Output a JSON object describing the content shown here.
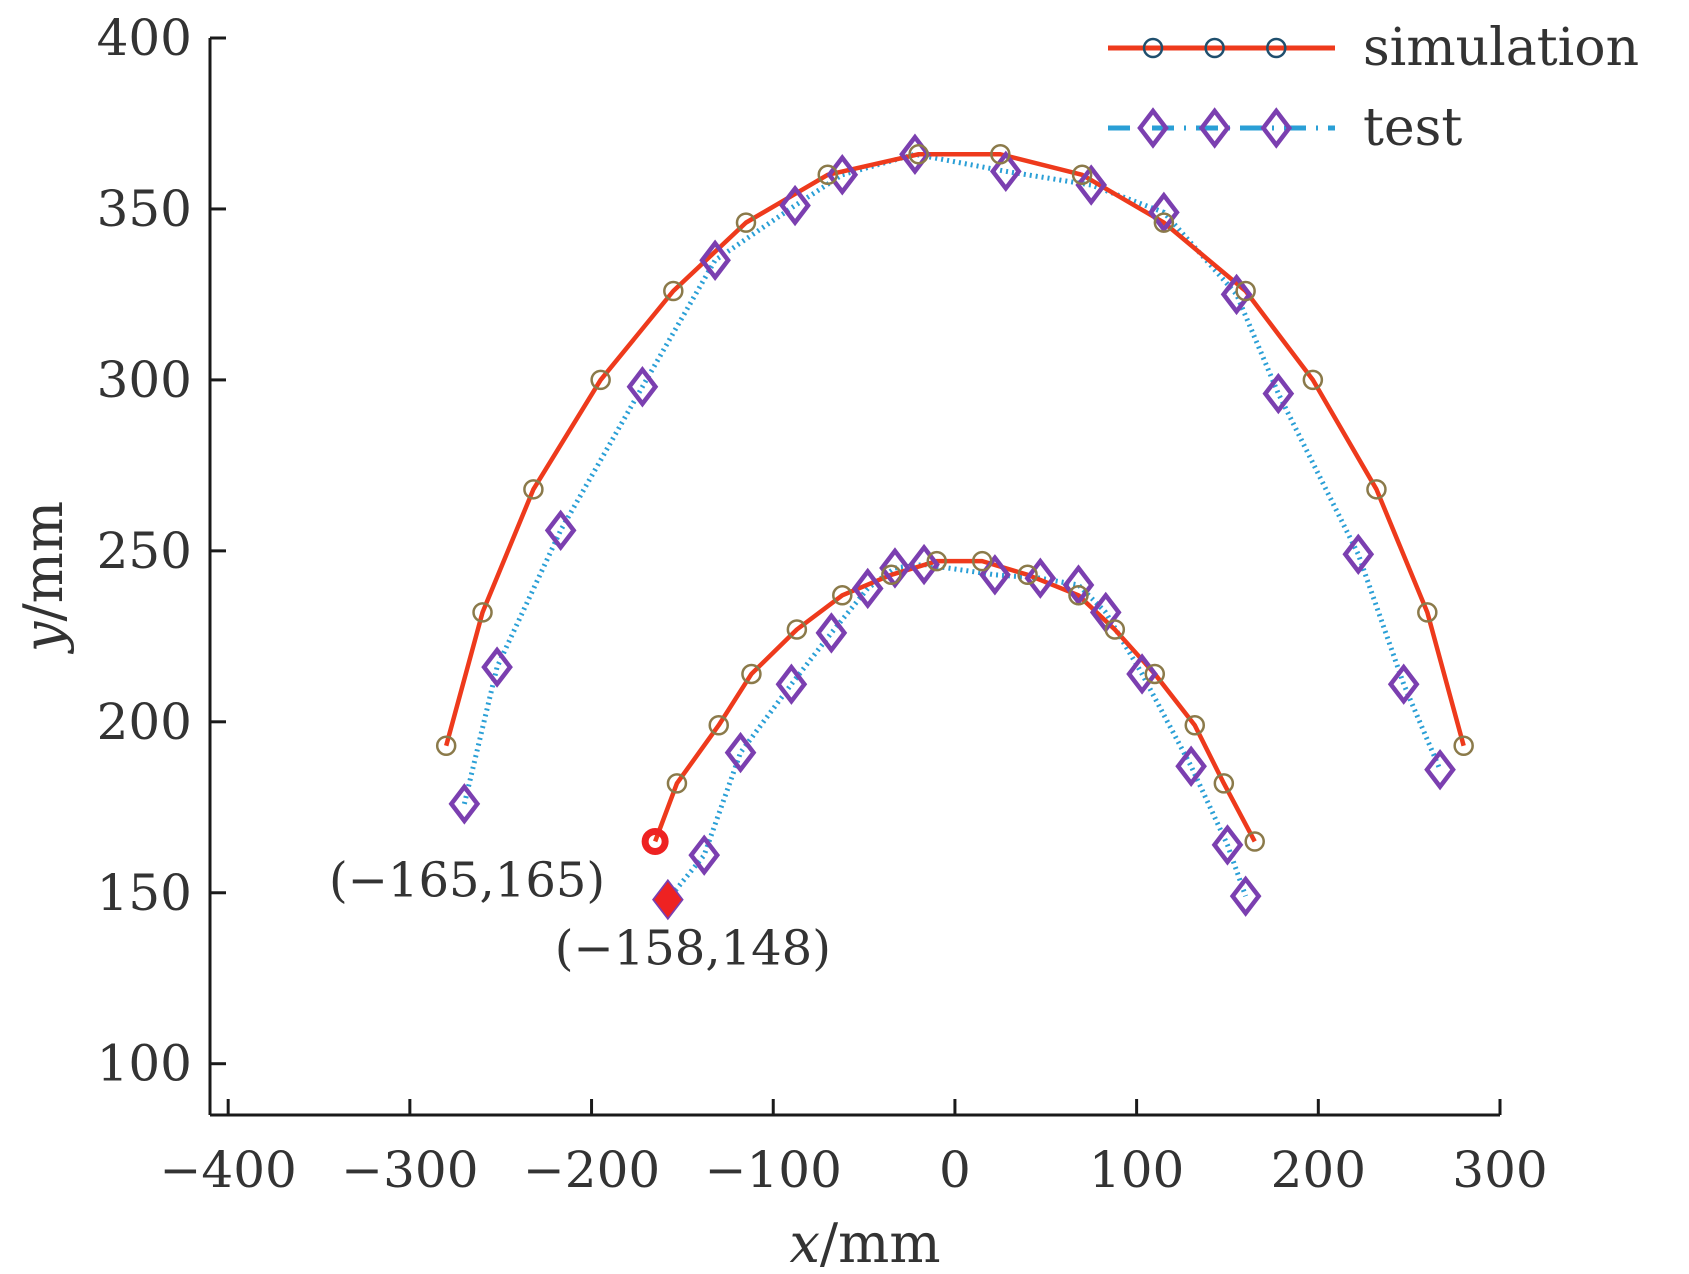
{
  "chart_data": {
    "type": "line",
    "xlabel_var": "x",
    "xlabel_unit": "/mm",
    "ylabel_var": "y",
    "ylabel_unit": "/mm",
    "xlim": [
      -410,
      300
    ],
    "ylim": [
      85,
      400
    ],
    "xticks": [
      -400,
      -300,
      -200,
      -100,
      0,
      100,
      200,
      300
    ],
    "yticks": [
      100,
      150,
      200,
      250,
      300,
      350,
      400
    ],
    "grid": false,
    "legend_position": "top-right",
    "series": [
      {
        "name": "simulation",
        "color": "#ee3a1c",
        "marker": "circle",
        "marker_color": "#8b7a4a",
        "line_style": "solid",
        "curves": [
          {
            "x": [
              -280,
              -260,
              -232,
              -195,
              -155,
              -115,
              -70,
              -20,
              25,
              70,
              115,
              160,
              197,
              232,
              260,
              280
            ],
            "y": [
              193,
              232,
              268,
              300,
              326,
              346,
              360,
              366,
              366,
              360,
              346,
              326,
              300,
              268,
              232,
              193
            ]
          },
          {
            "x": [
              -165,
              -153,
              -130,
              -112,
              -87,
              -62,
              -35,
              -10,
              15,
              40,
              68,
              88,
              110,
              132,
              148,
              165
            ],
            "y": [
              165,
              182,
              199,
              214,
              227,
              237,
              243,
              247,
              247,
              243,
              237,
              227,
              214,
              199,
              182,
              165
            ]
          }
        ]
      },
      {
        "name": "test",
        "color": "#2a9fd6",
        "marker": "diamond",
        "marker_color": "#7b3fb0",
        "line_style": "dotted",
        "curves": [
          {
            "x": [
              -270,
              -252,
              -217,
              -172,
              -132,
              -88,
              -62,
              -22,
              28,
              75,
              115,
              155,
              178,
              222,
              247,
              267
            ],
            "y": [
              176,
              216,
              256,
              298,
              335,
              351,
              360,
              366,
              361,
              357,
              349,
              325,
              296,
              249,
              211,
              186
            ]
          },
          {
            "x": [
              -158,
              -138,
              -118,
              -90,
              -68,
              -48,
              -33,
              -17,
              22,
              47,
              68,
              83,
              103,
              130,
              150,
              160
            ],
            "y": [
              148,
              161,
              191,
              211,
              226,
              239,
              245,
              246,
              243,
              242,
              240,
              232,
              214,
              187,
              164,
              149
            ]
          }
        ]
      }
    ],
    "annotations": [
      {
        "text": "(−165,165)",
        "x": -165,
        "y": 165,
        "marker": "circle",
        "color": "#ee2222"
      },
      {
        "text": "(−158,148)",
        "x": -158,
        "y": 148,
        "marker": "diamond",
        "color": "#ee2222"
      }
    ]
  }
}
